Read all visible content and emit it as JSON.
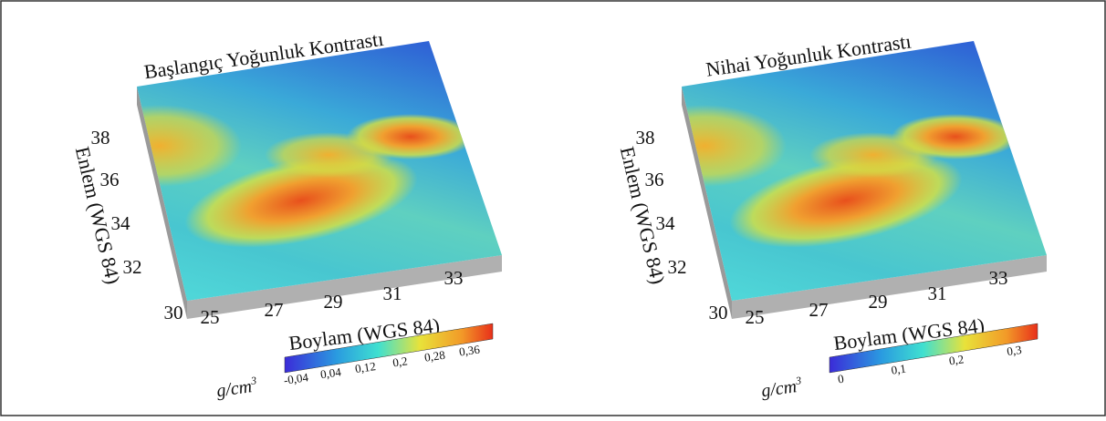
{
  "panels": [
    {
      "title": "Başlangıç Yoğunluk Kontrastı",
      "y_label": "Enlem (WGS 84)",
      "x_label": "Boylam (WGS 84)",
      "y_ticks": [
        "38",
        "36",
        "34",
        "32",
        "30"
      ],
      "x_ticks": [
        "25",
        "27",
        "29",
        "31",
        "33"
      ],
      "colorbar_unit": "g/cm",
      "colorbar_unit_power": "3",
      "colorbar_ticks": [
        "-0,04",
        "0,04",
        "0,12",
        "0,2",
        "0,28",
        "0,36"
      ]
    },
    {
      "title": "Nihai Yoğunluk Kontrastı",
      "y_label": "Enlem (WGS 84)",
      "x_label": "Boylam (WGS 84)",
      "y_ticks": [
        "38",
        "36",
        "34",
        "32",
        "30"
      ],
      "x_ticks": [
        "25",
        "27",
        "29",
        "31",
        "33"
      ],
      "colorbar_unit": "g/cm",
      "colorbar_unit_power": "3",
      "colorbar_ticks": [
        "0",
        "0,1",
        "0,2",
        "0,3"
      ]
    }
  ]
}
